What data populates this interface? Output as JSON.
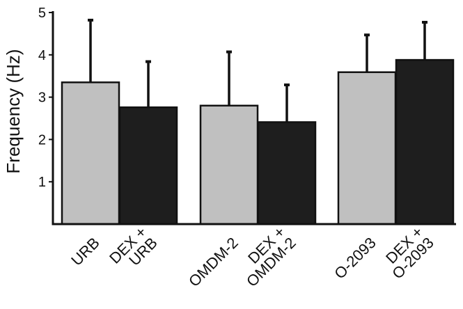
{
  "chart_data": {
    "type": "bar",
    "ylabel": "Frequency (Hz)",
    "ylim": [
      0,
      5
    ],
    "yticks": [
      1,
      2,
      3,
      4,
      5
    ],
    "grid": false,
    "categories": [
      [
        "URB"
      ],
      [
        "DEX +",
        "URB"
      ],
      [
        "OMDM-2"
      ],
      [
        "DEX +",
        "OMDM-2"
      ],
      [
        "O-2093"
      ],
      [
        "DEX +",
        "O-2093"
      ]
    ],
    "values": [
      3.35,
      2.76,
      2.8,
      2.41,
      3.59,
      3.88
    ],
    "errors": [
      1.47,
      1.08,
      1.27,
      0.88,
      0.88,
      0.89
    ],
    "bar_colors": [
      "#c0c0c0",
      "#1e1e1e",
      "#c0c0c0",
      "#1e1e1e",
      "#c0c0c0",
      "#1e1e1e"
    ],
    "outline_color": "#111111"
  }
}
